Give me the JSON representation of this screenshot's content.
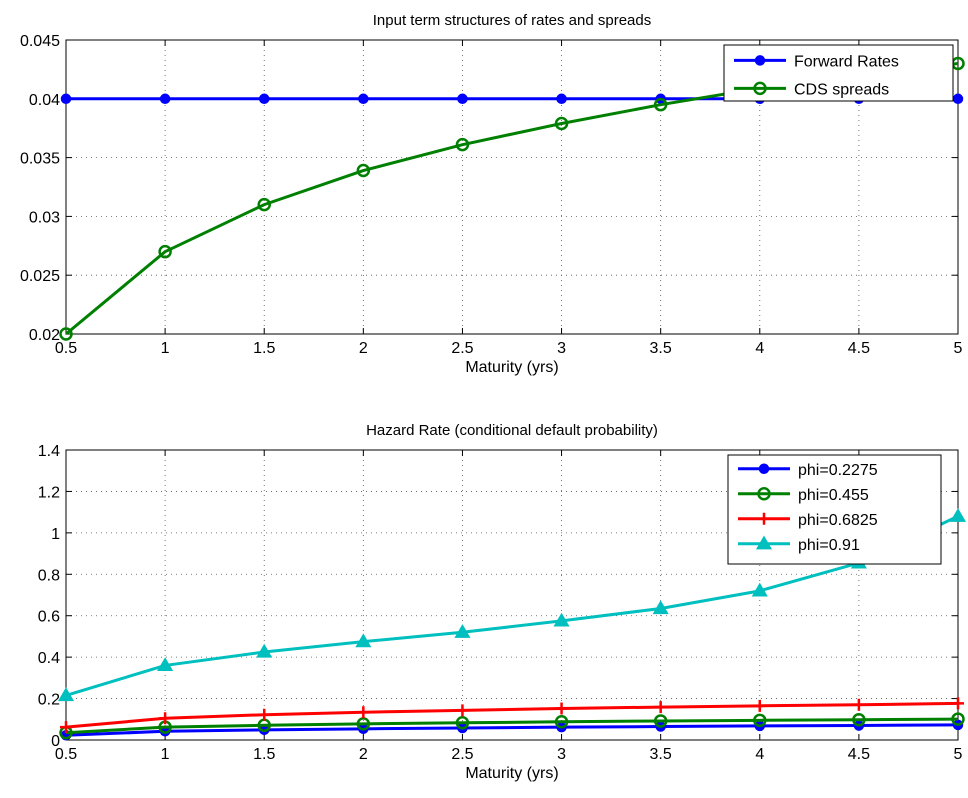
{
  "chart_data": [
    {
      "type": "line",
      "title": "Input term structures of rates and spreads",
      "xlabel": "Maturity (yrs)",
      "ylabel": "",
      "xlim": [
        0.5,
        5
      ],
      "ylim": [
        0.02,
        0.045
      ],
      "xticks": [
        0.5,
        1,
        1.5,
        2,
        2.5,
        3,
        3.5,
        4,
        4.5,
        5
      ],
      "xtick_labels": [
        "0.5",
        "1",
        "1.5",
        "2",
        "2.5",
        "3",
        "3.5",
        "4",
        "4.5",
        "5"
      ],
      "yticks": [
        0.02,
        0.025,
        0.03,
        0.035,
        0.04,
        0.045
      ],
      "ytick_labels": [
        "0.02",
        "0.025",
        "0.03",
        "0.035",
        "0.04",
        "0.045"
      ],
      "grid": true,
      "legend_position": "top-right",
      "x": [
        0.5,
        1,
        1.5,
        2,
        2.5,
        3,
        3.5,
        4,
        4.5,
        5
      ],
      "series": [
        {
          "name": "Forward Rates",
          "color": "#0000ff",
          "marker": "filled-circle",
          "values": [
            0.04,
            0.04,
            0.04,
            0.04,
            0.04,
            0.04,
            0.04,
            0.04,
            0.04,
            0.04
          ]
        },
        {
          "name": "CDS spreads",
          "color": "#008000",
          "marker": "open-circle",
          "values": [
            0.02,
            0.027,
            0.031,
            0.0339,
            0.0361,
            0.0379,
            0.0395,
            0.0409,
            0.042,
            0.043
          ]
        }
      ]
    },
    {
      "type": "line",
      "title": "Hazard Rate (conditional default probability)",
      "xlabel": "Maturity (yrs)",
      "ylabel": "",
      "xlim": [
        0.5,
        5
      ],
      "ylim": [
        0,
        1.4
      ],
      "xticks": [
        0.5,
        1,
        1.5,
        2,
        2.5,
        3,
        3.5,
        4,
        4.5,
        5
      ],
      "xtick_labels": [
        "0.5",
        "1",
        "1.5",
        "2",
        "2.5",
        "3",
        "3.5",
        "4",
        "4.5",
        "5"
      ],
      "yticks": [
        0,
        0.2,
        0.4,
        0.6,
        0.8,
        1,
        1.2,
        1.4
      ],
      "ytick_labels": [
        "0",
        "0.2",
        "0.4",
        "0.6",
        "0.8",
        "1",
        "1.2",
        "1.4"
      ],
      "grid": true,
      "legend_position": "top-right",
      "x": [
        0.5,
        1,
        1.5,
        2,
        2.5,
        3,
        3.5,
        4,
        4.5,
        5
      ],
      "series": [
        {
          "name": "phi=0.2275",
          "color": "#0000ff",
          "marker": "filled-circle",
          "values": [
            0.023,
            0.042,
            0.049,
            0.054,
            0.058,
            0.062,
            0.065,
            0.068,
            0.07,
            0.073
          ]
        },
        {
          "name": "phi=0.455",
          "color": "#008000",
          "marker": "open-circle",
          "values": [
            0.035,
            0.062,
            0.071,
            0.078,
            0.083,
            0.088,
            0.092,
            0.095,
            0.098,
            0.101
          ]
        },
        {
          "name": "phi=0.6825",
          "color": "#ff0000",
          "marker": "plus",
          "values": [
            0.062,
            0.105,
            0.122,
            0.134,
            0.143,
            0.152,
            0.159,
            0.165,
            0.17,
            0.177
          ]
        },
        {
          "name": "phi=0.91",
          "color": "#00bfbf",
          "marker": "triangle",
          "values": [
            0.215,
            0.36,
            0.425,
            0.475,
            0.52,
            0.575,
            0.635,
            0.72,
            0.855,
            1.08
          ]
        }
      ]
    }
  ]
}
